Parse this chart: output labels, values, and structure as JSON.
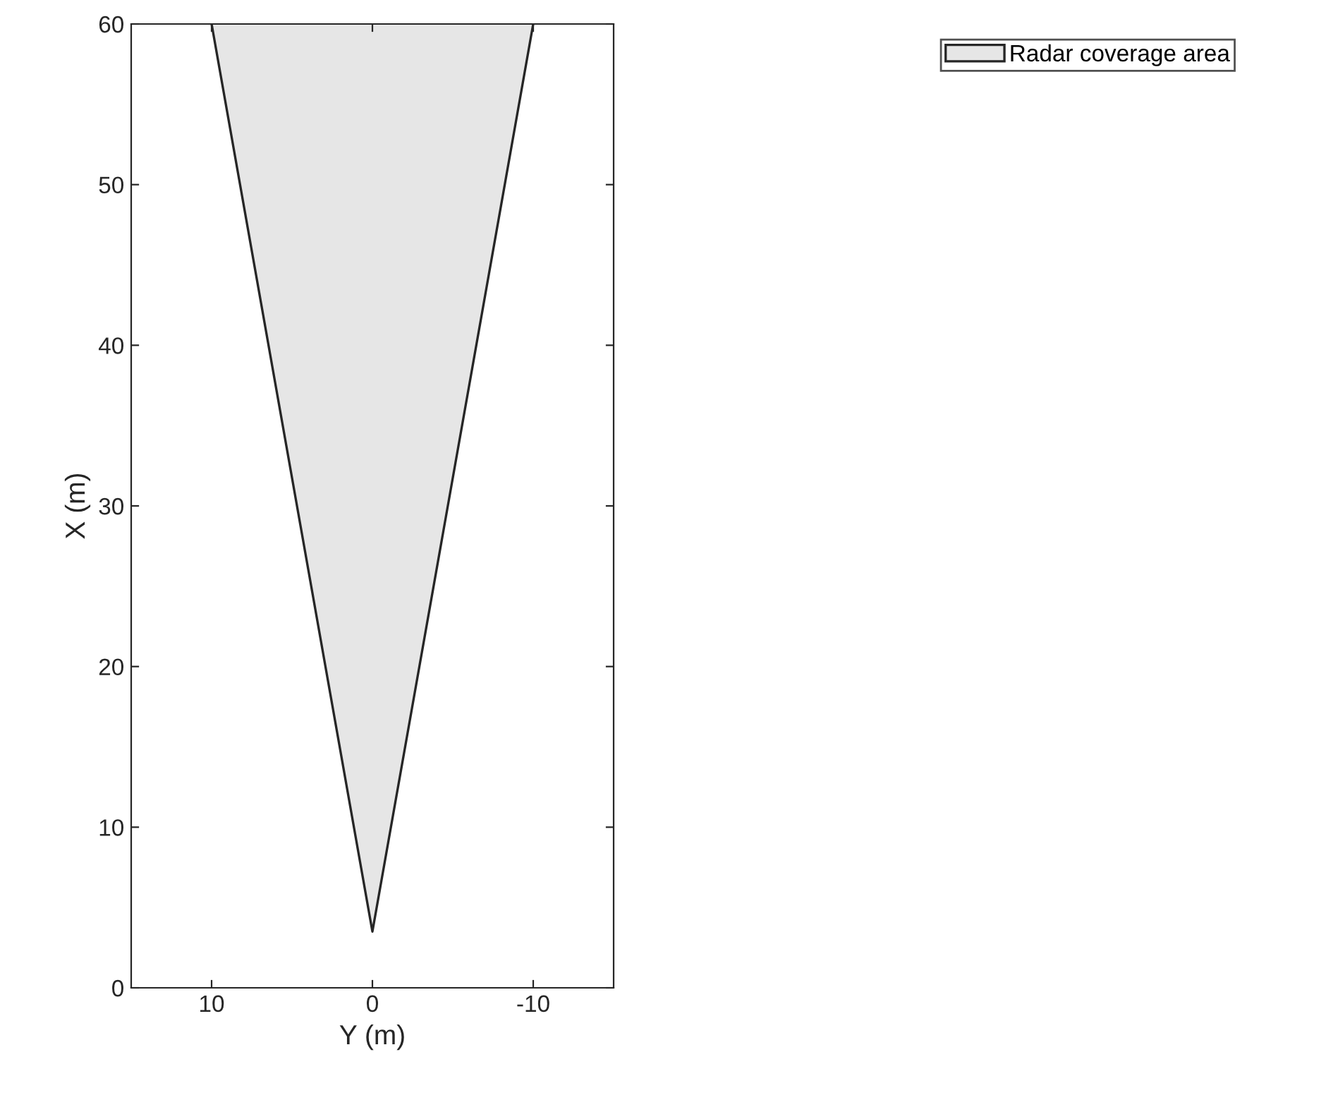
{
  "chart_data": {
    "type": "area",
    "xlabel": "Y (m)",
    "ylabel": "X (m)",
    "series": [
      {
        "name": "Radar coverage area",
        "color": "#e6e6e6",
        "x": [
          10,
          0,
          -10
        ],
        "values": [
          60,
          3.5,
          60
        ]
      }
    ],
    "xlim": [
      15,
      -15
    ],
    "xticks": [
      10,
      0,
      -10
    ],
    "ylim": [
      0,
      60
    ],
    "yticks": [
      0,
      10,
      20,
      30,
      40,
      50,
      60
    ],
    "grid": false,
    "legend": "top right"
  }
}
